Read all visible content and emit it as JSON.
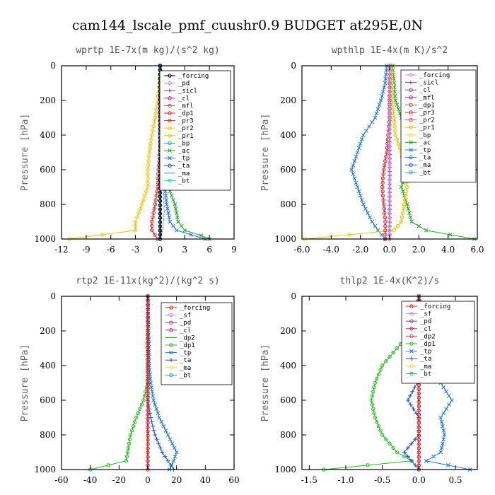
{
  "figure_title": "cam144_lscale_pmf_cuushr0.9  BUDGET at295E,0N",
  "chart_data": [
    {
      "type": "line",
      "title": "wprtp  1E-7x(m kg)/(s^2 kg)",
      "ylabel": "Pressure [hPa]",
      "xlim": [
        -12,
        9
      ],
      "ylim": [
        1000,
        0
      ],
      "xticks": [
        -12,
        -9,
        -6,
        -3,
        0,
        3,
        6,
        9
      ],
      "xtick_labels": [
        "-12",
        "-9",
        "-6",
        "-3",
        "0",
        "3",
        "6",
        "9"
      ],
      "yticks": [
        0,
        200,
        400,
        600,
        800,
        1000
      ],
      "ytick_labels": [
        "0",
        "200",
        "400",
        "600",
        "800",
        "1000"
      ],
      "legend": [
        "_forcing",
        "_pd",
        "_sicl",
        "_cl",
        "_mfl",
        "_dp1",
        "_pr3",
        "_pr2",
        "_pr1",
        "_bp",
        "_ac",
        "_tp",
        "_ta",
        "_ma",
        "_bt"
      ],
      "series": [
        {
          "name": "_pr1",
          "color": "#f2c200",
          "marker": "o",
          "points": [
            [
              0,
              0
            ],
            [
              -0.1,
              100
            ],
            [
              -0.3,
              200
            ],
            [
              -0.6,
              300
            ],
            [
              -1.0,
              400
            ],
            [
              -1.3,
              500
            ],
            [
              -1.5,
              600
            ],
            [
              -1.5,
              700
            ],
            [
              -2.2,
              800
            ],
            [
              -3.0,
              900
            ],
            [
              -3.0,
              950
            ],
            [
              -11,
              1000
            ]
          ]
        },
        {
          "name": "_ac",
          "color": "#22aa22",
          "marker": "x",
          "points": [
            [
              0,
              0
            ],
            [
              0.1,
              200
            ],
            [
              0.2,
              400
            ],
            [
              0.3,
              500
            ],
            [
              0.8,
              600
            ],
            [
              1.0,
              700
            ],
            [
              1.8,
              800
            ],
            [
              2.2,
              900
            ],
            [
              3.0,
              950
            ],
            [
              5.0,
              980
            ],
            [
              6,
              1000
            ]
          ]
        },
        {
          "name": "_tp",
          "color": "#2277dd",
          "marker": "x",
          "points": [
            [
              0,
              0
            ],
            [
              0.1,
              300
            ],
            [
              0.2,
              500
            ],
            [
              0.4,
              600
            ],
            [
              0.6,
              700
            ],
            [
              0.8,
              800
            ],
            [
              1.2,
              900
            ],
            [
              2.0,
              950
            ],
            [
              5.5,
              1000
            ]
          ]
        },
        {
          "name": "_pr3",
          "color": "#dd2222",
          "marker": "o",
          "points": [
            [
              0,
              0
            ],
            [
              0,
              500
            ],
            [
              -0.2,
              600
            ],
            [
              -0.3,
              700
            ],
            [
              -0.6,
              800
            ],
            [
              -1.0,
              900
            ],
            [
              -1.0,
              950
            ],
            [
              -0.3,
              1000
            ]
          ]
        },
        {
          "name": "_ma",
          "color": "#4488ff",
          "marker": "-",
          "points": [
            [
              0,
              0
            ],
            [
              0,
              500
            ],
            [
              0.4,
              700
            ],
            [
              0.5,
              850
            ],
            [
              0.3,
              950
            ],
            [
              0,
              1000
            ]
          ]
        },
        {
          "name": "_sicl",
          "color": "#884488",
          "marker": "+",
          "points": [
            [
              0,
              0
            ],
            [
              0,
              1000
            ]
          ]
        },
        {
          "name": "_bt",
          "color": "#00dddd",
          "marker": "o",
          "points": [
            [
              0,
              0
            ],
            [
              0,
              1000
            ]
          ]
        },
        {
          "name": "_forcing",
          "color": "#000000",
          "marker": "o",
          "points": [
            [
              0,
              0
            ],
            [
              0,
              1000
            ]
          ]
        }
      ]
    },
    {
      "type": "line",
      "title": "wpthlp  1E-4x(m K)/s^2",
      "ylabel": "Pressure [hPa]",
      "xlim": [
        -6,
        6
      ],
      "ylim": [
        1000,
        0
      ],
      "xticks": [
        -6,
        -4,
        -2,
        0,
        2,
        4,
        6
      ],
      "xtick_labels": [
        "-6.0",
        "-4.0",
        "-2.0",
        "0.0",
        "2.0",
        "4.0",
        "6.0"
      ],
      "yticks": [
        0,
        200,
        400,
        600,
        800,
        1000
      ],
      "ytick_labels": [
        "0",
        "200",
        "400",
        "600",
        "800",
        "1000"
      ],
      "legend": [
        "_forcing",
        "_sicl",
        "_cl",
        "_mfl",
        "_dp1",
        "_pr3",
        "_pr2",
        "_pr1",
        "_bp",
        "_ac",
        "_tp",
        "_ta",
        "_ma",
        "_bt"
      ],
      "series": [
        {
          "name": "_tp",
          "color": "#2277dd",
          "marker": "x",
          "points": [
            [
              -0.2,
              0
            ],
            [
              -0.3,
              100
            ],
            [
              -0.6,
              200
            ],
            [
              -1.0,
              300
            ],
            [
              -1.8,
              400
            ],
            [
              -2.2,
              500
            ],
            [
              -2.6,
              600
            ],
            [
              -2.2,
              700
            ],
            [
              -1.8,
              800
            ],
            [
              -1.2,
              900
            ],
            [
              -0.8,
              950
            ],
            [
              -0.3,
              1000
            ]
          ]
        },
        {
          "name": "_ac",
          "color": "#22aa22",
          "marker": "x",
          "points": [
            [
              0.2,
              0
            ],
            [
              0.3,
              100
            ],
            [
              0.4,
              200
            ],
            [
              0.8,
              300
            ],
            [
              1.3,
              400
            ],
            [
              1.4,
              500
            ],
            [
              1.2,
              600
            ],
            [
              0.8,
              700
            ],
            [
              1.2,
              800
            ],
            [
              1.5,
              900
            ],
            [
              2.5,
              950
            ],
            [
              5.8,
              1000
            ]
          ]
        },
        {
          "name": "_pr1",
          "color": "#f2c200",
          "marker": "o",
          "points": [
            [
              0.1,
              0
            ],
            [
              0.2,
              200
            ],
            [
              0.4,
              400
            ],
            [
              0.8,
              500
            ],
            [
              1.0,
              600
            ],
            [
              1.2,
              700
            ],
            [
              1.0,
              800
            ],
            [
              0.8,
              900
            ],
            [
              0.3,
              950
            ],
            [
              -5.8,
              1000
            ]
          ]
        },
        {
          "name": "_pr3",
          "color": "#dd2222",
          "marker": "o",
          "points": [
            [
              0,
              0
            ],
            [
              0,
              300
            ],
            [
              -0.2,
              500
            ],
            [
              -0.4,
              600
            ],
            [
              -0.5,
              700
            ],
            [
              -0.4,
              800
            ],
            [
              -0.3,
              900
            ],
            [
              -0.3,
              1000
            ]
          ]
        },
        {
          "name": "_sicl",
          "color": "#884488",
          "marker": "+",
          "points": [
            [
              0,
              0
            ],
            [
              0,
              1000
            ]
          ]
        },
        {
          "name": "_forcing",
          "color": "#cc88dd",
          "marker": "o",
          "points": [
            [
              0,
              0
            ],
            [
              0,
              1000
            ]
          ]
        }
      ]
    },
    {
      "type": "line",
      "title": "rtp2  1E-11x(kg^2)/(kg^2 s)",
      "ylabel": "Pressure [hPa]",
      "xlim": [
        -60,
        60
      ],
      "ylim": [
        1000,
        0
      ],
      "xticks": [
        -60,
        -40,
        -20,
        0,
        20,
        40,
        60
      ],
      "xtick_labels": [
        "-60",
        "-40",
        "-20",
        "0",
        "20",
        "40",
        "60"
      ],
      "yticks": [
        0,
        200,
        400,
        600,
        800,
        1000
      ],
      "ytick_labels": [
        "0",
        "200",
        "400",
        "600",
        "800",
        "1000"
      ],
      "legend": [
        "_forcing",
        "_sf",
        "_pd",
        "_cl",
        "_dp2",
        "_dp1",
        "_tp",
        "_ta",
        "_ma",
        "_bt"
      ],
      "series": [
        {
          "name": "_dp1",
          "color": "#22bb22",
          "marker": "o",
          "points": [
            [
              0,
              0
            ],
            [
              0,
              500
            ],
            [
              -3,
              600
            ],
            [
              -8,
              700
            ],
            [
              -12,
              800
            ],
            [
              -14,
              900
            ],
            [
              -15,
              950
            ],
            [
              -40,
              1000
            ]
          ]
        },
        {
          "name": "_tp",
          "color": "#2277dd",
          "marker": "x",
          "points": [
            [
              0,
              0
            ],
            [
              1,
              400
            ],
            [
              2,
              500
            ],
            [
              4,
              600
            ],
            [
              8,
              700
            ],
            [
              14,
              800
            ],
            [
              20,
              900
            ],
            [
              18,
              950
            ],
            [
              15,
              1000
            ]
          ]
        },
        {
          "name": "_ta",
          "color": "#2255cc",
          "marker": "+",
          "points": [
            [
              0,
              0
            ],
            [
              0,
              600
            ],
            [
              2,
              700
            ],
            [
              5,
              800
            ],
            [
              10,
              900
            ],
            [
              18,
              1000
            ]
          ]
        },
        {
          "name": "_dp2",
          "color": "#00aa00",
          "marker": "-",
          "points": [
            [
              0,
              0
            ],
            [
              0,
              1000
            ]
          ]
        },
        {
          "name": "_forcing",
          "color": "#dd2222",
          "marker": "o",
          "points": [
            [
              0,
              0
            ],
            [
              0,
              1000
            ]
          ]
        }
      ]
    },
    {
      "type": "line",
      "title": "thlp2  1E-4x(K^2)/s",
      "ylabel": "Pressure [hPa]",
      "xlim": [
        -1.6,
        0.8
      ],
      "ylim": [
        1000,
        0
      ],
      "xticks": [
        -1.5,
        -1.0,
        -0.5,
        0.0,
        0.5
      ],
      "xtick_labels": [
        "-1.5",
        "-1.0",
        "-0.5",
        "0.0",
        "0.5"
      ],
      "yticks": [
        0,
        200,
        400,
        600,
        800,
        1000
      ],
      "ytick_labels": [
        "0",
        "200",
        "400",
        "600",
        "800",
        "1000"
      ],
      "legend": [
        "_forcing",
        "_sf",
        "_pd",
        "_cl",
        "_dp2",
        "_dp1",
        "_tp",
        "_ta",
        "_ma",
        "_bt"
      ],
      "series": [
        {
          "name": "_dp1",
          "color": "#22bb22",
          "marker": "o",
          "points": [
            [
              0,
              0
            ],
            [
              -0.1,
              200
            ],
            [
              -0.3,
              300
            ],
            [
              -0.5,
              400
            ],
            [
              -0.6,
              500
            ],
            [
              -0.65,
              600
            ],
            [
              -0.6,
              700
            ],
            [
              -0.5,
              800
            ],
            [
              -0.3,
              900
            ],
            [
              -0.1,
              950
            ],
            [
              -1.3,
              1000
            ]
          ]
        },
        {
          "name": "_tp",
          "color": "#2277dd",
          "marker": "x",
          "points": [
            [
              0,
              0
            ],
            [
              0.05,
              200
            ],
            [
              0.1,
              300
            ],
            [
              0.2,
              400
            ],
            [
              0.3,
              500
            ],
            [
              0.45,
              600
            ],
            [
              0.3,
              700
            ],
            [
              0.35,
              800
            ],
            [
              0.3,
              900
            ],
            [
              0.1,
              950
            ],
            [
              0.7,
              1000
            ]
          ]
        },
        {
          "name": "_ta",
          "color": "#2255cc",
          "marker": "+",
          "points": [
            [
              0,
              0
            ],
            [
              0.1,
              200
            ],
            [
              0.1,
              400
            ],
            [
              -0.15,
              600
            ],
            [
              0,
              700
            ],
            [
              0,
              800
            ],
            [
              -0.2,
              900
            ],
            [
              0,
              1000
            ]
          ]
        },
        {
          "name": "_forcing",
          "color": "#dd2222",
          "marker": "o",
          "points": [
            [
              0,
              0
            ],
            [
              0,
              1000
            ]
          ]
        }
      ]
    }
  ]
}
